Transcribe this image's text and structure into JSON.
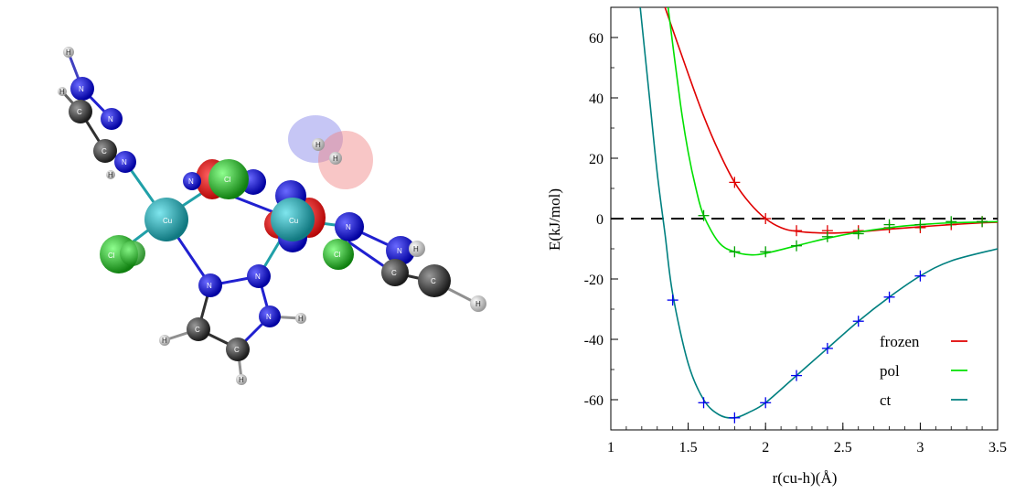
{
  "molecule": {
    "atoms": [
      {
        "el": "H",
        "color": "#e8e8e8",
        "label": "H"
      },
      {
        "el": "N",
        "color": "#1010c8",
        "label": "N"
      },
      {
        "el": "C",
        "color": "#303030",
        "label": "C"
      },
      {
        "el": "Cu",
        "color": "#20a0a8",
        "label": "Cu"
      },
      {
        "el": "Cl",
        "color": "#20b020",
        "label": "Cl"
      }
    ]
  },
  "chart_data": {
    "type": "line",
    "xlabel": "r(cu-h)(Å)",
    "ylabel": "E(kJ/mol)",
    "xlim": [
      1,
      3.5
    ],
    "ylim": [
      -70,
      70
    ],
    "xticks": [
      "1",
      "1.5",
      "2",
      "2.5",
      "3",
      "3.5"
    ],
    "yticks": [
      "-60",
      "-40",
      "-20",
      "0",
      "20",
      "40",
      "60"
    ],
    "grid": false,
    "legend_position": "bottom-right",
    "reference_line": {
      "y": 0,
      "style": "dashed",
      "color": "#000000"
    },
    "series": [
      {
        "name": "frozen",
        "color": "#e00000",
        "marker_color": "#e00000",
        "curve": [
          [
            1.35,
            70
          ],
          [
            1.5,
            48
          ],
          [
            1.6,
            34
          ],
          [
            1.7,
            22
          ],
          [
            1.8,
            12
          ],
          [
            1.9,
            5
          ],
          [
            2.0,
            0
          ],
          [
            2.1,
            -3
          ],
          [
            2.2,
            -4.2
          ],
          [
            2.4,
            -4.8
          ],
          [
            2.6,
            -4.4
          ],
          [
            2.8,
            -3.5
          ],
          [
            3.0,
            -2.7
          ],
          [
            3.2,
            -2
          ],
          [
            3.4,
            -1.4
          ],
          [
            3.5,
            -1.2
          ]
        ],
        "points": [
          [
            1.8,
            12
          ],
          [
            2.0,
            0
          ],
          [
            2.2,
            -4
          ],
          [
            2.4,
            -4
          ],
          [
            2.6,
            -4
          ],
          [
            2.8,
            -3
          ],
          [
            3.0,
            -3
          ],
          [
            3.2,
            -2
          ],
          [
            3.4,
            -1
          ]
        ]
      },
      {
        "name": "pol",
        "color": "#00e000",
        "marker_color": "#00a000",
        "curve": [
          [
            1.37,
            70
          ],
          [
            1.45,
            38
          ],
          [
            1.5,
            22
          ],
          [
            1.55,
            10
          ],
          [
            1.6,
            1
          ],
          [
            1.7,
            -8
          ],
          [
            1.8,
            -11
          ],
          [
            1.9,
            -12
          ],
          [
            2.0,
            -11.5
          ],
          [
            2.2,
            -9
          ],
          [
            2.4,
            -6.5
          ],
          [
            2.6,
            -4.5
          ],
          [
            2.8,
            -3
          ],
          [
            3.0,
            -2
          ],
          [
            3.2,
            -1.4
          ],
          [
            3.5,
            -1
          ]
        ],
        "points": [
          [
            1.6,
            1
          ],
          [
            1.8,
            -11
          ],
          [
            2.0,
            -11
          ],
          [
            2.2,
            -9
          ],
          [
            2.4,
            -6
          ],
          [
            2.6,
            -5
          ],
          [
            2.8,
            -2
          ],
          [
            3.0,
            -2
          ],
          [
            3.2,
            -1
          ],
          [
            3.4,
            -1
          ]
        ]
      },
      {
        "name": "ct",
        "color": "#008080",
        "marker_color": "#0000ee",
        "curve": [
          [
            1.19,
            70
          ],
          [
            1.25,
            40
          ],
          [
            1.3,
            15
          ],
          [
            1.35,
            -5
          ],
          [
            1.4,
            -25
          ],
          [
            1.5,
            -48
          ],
          [
            1.6,
            -60
          ],
          [
            1.7,
            -65
          ],
          [
            1.8,
            -66
          ],
          [
            1.9,
            -64
          ],
          [
            2.0,
            -61
          ],
          [
            2.2,
            -52
          ],
          [
            2.4,
            -43
          ],
          [
            2.6,
            -34
          ],
          [
            2.8,
            -26
          ],
          [
            3.0,
            -19
          ],
          [
            3.2,
            -14
          ],
          [
            3.5,
            -10
          ]
        ],
        "points": [
          [
            1.4,
            -27
          ],
          [
            1.6,
            -61
          ],
          [
            1.8,
            -66
          ],
          [
            2.0,
            -61
          ],
          [
            2.2,
            -52
          ],
          [
            2.4,
            -43
          ],
          [
            2.6,
            -34
          ],
          [
            2.8,
            -26
          ],
          [
            3.0,
            -19
          ]
        ]
      }
    ]
  }
}
